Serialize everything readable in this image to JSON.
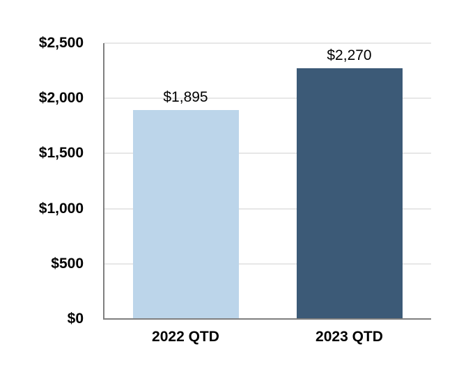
{
  "chart_data": {
    "type": "bar",
    "title": "",
    "xlabel": "",
    "ylabel": "",
    "categories": [
      "2022 QTD",
      "2023 QTD"
    ],
    "values": [
      1895,
      2270
    ],
    "value_labels": [
      "$1,895",
      "$2,270"
    ],
    "series_colors": [
      "#BCD5EA",
      "#3C5A77"
    ],
    "ylim": [
      0,
      2500
    ],
    "yticks": [
      {
        "value": 0,
        "label": "$0"
      },
      {
        "value": 500,
        "label": "$500"
      },
      {
        "value": 1000,
        "label": "$1,000"
      },
      {
        "value": 1500,
        "label": "$1,500"
      },
      {
        "value": 2000,
        "label": "$2,000"
      },
      {
        "value": 2500,
        "label": "$2,500"
      }
    ],
    "grid": "horizontal",
    "legend": "none"
  },
  "colors": {
    "background": "#FFFFFF",
    "gridline": "#E7E7E7",
    "axis_line": "#7F7F7F",
    "text": "#000000",
    "bar_2022_qtd": "#BCD5EA",
    "bar_2023_qtd": "#3C5A77"
  }
}
